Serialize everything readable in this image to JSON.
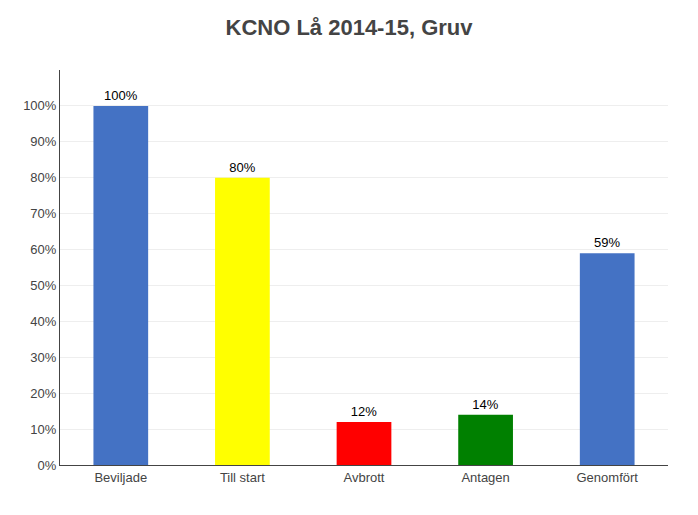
{
  "chart_data": {
    "type": "bar",
    "title": "KCNO Lå 2014-15, Gruv",
    "categories": [
      "Beviljade",
      "Till start",
      "Avbrott",
      "Antagen",
      "Genomfört"
    ],
    "values": [
      100,
      80,
      12,
      14,
      59
    ],
    "colors": [
      "#4472C4",
      "#FFFF00",
      "#FF0000",
      "#008000",
      "#4472C4"
    ],
    "data_labels": true,
    "value_labels": [
      "100%",
      "80%",
      "12%",
      "14%",
      "59%"
    ],
    "ylim": [
      0,
      110
    ],
    "yticks": [
      {
        "value": 0,
        "label": "0%"
      },
      {
        "value": 10,
        "label": "10%"
      },
      {
        "value": 20,
        "label": "20%"
      },
      {
        "value": 30,
        "label": "30%"
      },
      {
        "value": 40,
        "label": "40%"
      },
      {
        "value": 50,
        "label": "50%"
      },
      {
        "value": 60,
        "label": "60%"
      },
      {
        "value": 70,
        "label": "70%"
      },
      {
        "value": 80,
        "label": "80%"
      },
      {
        "value": 90,
        "label": "90%"
      },
      {
        "value": 100,
        "label": "100%"
      }
    ],
    "grid": true
  }
}
